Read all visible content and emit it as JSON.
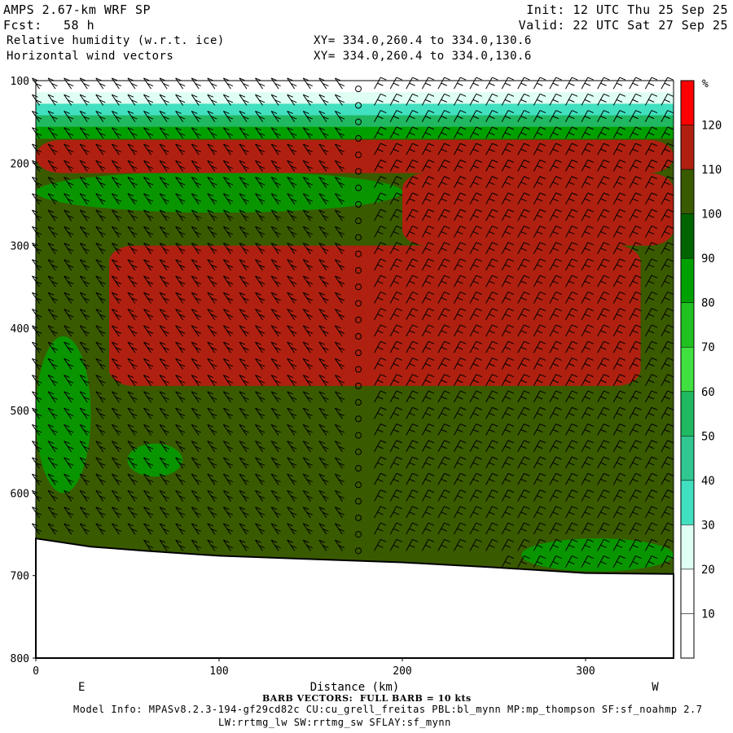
{
  "header": {
    "model": "AMPS 2.67-km WRF SP",
    "fcst_label": "Fcst:",
    "fcst_value": "58 h",
    "init": "Init: 12 UTC Thu 25 Sep 25",
    "valid": "Valid: 22 UTC Sat 27 Sep 25",
    "field1": "Relative humidity (w.r.t. ice)",
    "field2": "Horizontal wind vectors",
    "xy1": "XY= 334.0,260.4 to 334.0,130.6",
    "xy2": "XY= 334.0,260.4 to 334.0,130.6"
  },
  "footer": {
    "barb_note": "BARB VECTORS:  FULL BARB = 10 kts",
    "model_info": "Model Info: MPASv8.2.3-194-gf29cd82c CU:cu_grell_freitas PBL:bl_mynn MP:mp_thompson SF:sf_noahmp 2.7",
    "model_info2": "LW:rrtmg_lw SW:rrtmg_sw SFLAY:sf_mynn"
  },
  "chart_data": {
    "type": "heatmap",
    "xlabel": "Distance (km)",
    "ylabel": "",
    "x_ticks": [
      0,
      100,
      200,
      300
    ],
    "y_ticks": [
      100,
      200,
      300,
      400,
      500,
      600,
      700,
      800
    ],
    "xlim": [
      0,
      348
    ],
    "ylim": [
      100,
      800
    ],
    "y_inverted": true,
    "x_end_labels": {
      "left": "E",
      "right": "W"
    },
    "colorbar": {
      "unit": "%",
      "levels": [
        10,
        20,
        30,
        40,
        50,
        60,
        70,
        80,
        90,
        100,
        110,
        120
      ],
      "colors": [
        "#ffffff",
        "#ffffff",
        "#e0fff4",
        "#40e0c0",
        "#30c890",
        "#20b860",
        "#40e040",
        "#20c020",
        "#00a000",
        "#006400",
        "#3a5a00",
        "#b02010",
        "#ff0000"
      ]
    },
    "fields": {
      "background_color": "#3a5a00",
      "moist_color": "#b02010",
      "terrain_color": "#ffffff",
      "terrain_surface_km_pressure": [
        [
          0,
          655
        ],
        [
          30,
          665
        ],
        [
          60,
          670
        ],
        [
          100,
          676
        ],
        [
          150,
          680
        ],
        [
          200,
          684
        ],
        [
          250,
          690
        ],
        [
          300,
          697
        ],
        [
          348,
          698
        ]
      ],
      "red_regions": [
        {
          "x": [
            0,
            348
          ],
          "p": [
            172,
            212
          ]
        },
        {
          "x": [
            200,
            348
          ],
          "p": [
            212,
            300
          ]
        },
        {
          "x": [
            40,
            330
          ],
          "p": [
            300,
            470
          ]
        }
      ],
      "green_regions": [
        {
          "x": [
            0,
            200
          ],
          "p": [
            210,
            260
          ]
        },
        {
          "x": [
            50,
            80
          ],
          "p": [
            540,
            580
          ]
        },
        {
          "x": [
            0,
            30
          ],
          "p": [
            410,
            600
          ]
        },
        {
          "x": [
            265,
            348
          ],
          "p": [
            655,
            695
          ]
        }
      ],
      "top_band": {
        "p": [
          100,
          170
        ],
        "colors": [
          "#ffffff",
          "#e0fff4",
          "#40e0c0",
          "#20b860",
          "#00a000"
        ]
      }
    },
    "barbs": {
      "x_step_km": 8.7,
      "p_step_hpa": 20,
      "calm_column_km": 174
    }
  }
}
